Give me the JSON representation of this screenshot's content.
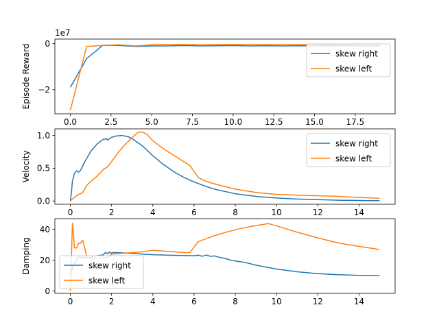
{
  "chart_data": [
    {
      "type": "line",
      "ylabel": "Episode Reward",
      "offset_label": "1e7",
      "xlim": [
        -0.95,
        19.95
      ],
      "ylim": [
        -3.05,
        0.2
      ],
      "xticks": [
        {
          "v": 0,
          "t": "0.0"
        },
        {
          "v": 2.5,
          "t": "2.5"
        },
        {
          "v": 5,
          "t": "5.0"
        },
        {
          "v": 7.5,
          "t": "7.5"
        },
        {
          "v": 10,
          "t": "10.0"
        },
        {
          "v": 12.5,
          "t": "12.5"
        },
        {
          "v": 15,
          "t": "15.0"
        },
        {
          "v": 17.5,
          "t": "17.5"
        }
      ],
      "yticks": [
        {
          "v": 0,
          "t": "0"
        },
        {
          "v": -2,
          "t": "−2"
        }
      ],
      "legend": {
        "position": "upper-right",
        "labels": [
          "skew right",
          "skew left"
        ]
      },
      "series": [
        {
          "name": "skew right",
          "color": "#1f77b4",
          "x": [
            0,
            1,
            2,
            3,
            4,
            5,
            6,
            7,
            8,
            9,
            10,
            11,
            12,
            13,
            14,
            15,
            16,
            17,
            18,
            19
          ],
          "y": [
            -1.9,
            -0.65,
            -0.07,
            -0.08,
            -0.12,
            -0.1,
            -0.1,
            -0.08,
            -0.1,
            -0.09,
            -0.08,
            -0.1,
            -0.09,
            -0.1,
            -0.09,
            -0.1,
            -0.09,
            -0.1,
            -0.1,
            -0.1
          ]
        },
        {
          "name": "skew left",
          "color": "#ff7f0e",
          "x": [
            0,
            1,
            2,
            3,
            4,
            5,
            6,
            7,
            8,
            9,
            10,
            11,
            12,
            13,
            14,
            15,
            16,
            17,
            18,
            19
          ],
          "y": [
            -2.9,
            -0.12,
            -0.08,
            -0.05,
            -0.1,
            -0.05,
            -0.03,
            -0.04,
            -0.05,
            -0.04,
            -0.04,
            -0.04,
            -0.03,
            -0.04,
            -0.04,
            -0.03,
            -0.04,
            -0.04,
            -0.03,
            -0.03
          ]
        }
      ]
    },
    {
      "type": "line",
      "ylabel": "Velocity",
      "xlim": [
        -0.75,
        15.75
      ],
      "ylim": [
        -0.05,
        1.1
      ],
      "xticks": [
        {
          "v": 0,
          "t": "0"
        },
        {
          "v": 2,
          "t": "2"
        },
        {
          "v": 4,
          "t": "4"
        },
        {
          "v": 6,
          "t": "6"
        },
        {
          "v": 8,
          "t": "8"
        },
        {
          "v": 10,
          "t": "10"
        },
        {
          "v": 12,
          "t": "12"
        },
        {
          "v": 14,
          "t": "14"
        }
      ],
      "yticks": [
        {
          "v": 0,
          "t": "0.0"
        },
        {
          "v": 0.5,
          "t": "0.5"
        },
        {
          "v": 1,
          "t": "1.0"
        }
      ],
      "legend": {
        "position": "upper-right",
        "labels": [
          "skew right",
          "skew left"
        ]
      },
      "series": [
        {
          "name": "skew right",
          "color": "#1f77b4",
          "x": [
            0,
            0.05,
            0.1,
            0.2,
            0.3,
            0.4,
            0.5,
            0.7,
            1.0,
            1.3,
            1.6,
            1.75,
            1.8,
            1.9,
            2.0,
            2.2,
            2.5,
            2.8,
            3.0,
            3.5,
            4.0,
            4.5,
            5.0,
            5.5,
            6.0,
            6.5,
            7.0,
            8.0,
            9.0,
            10.0,
            11.0,
            12.0,
            13.0,
            14.0,
            15.0
          ],
          "y": [
            0,
            0.12,
            0.3,
            0.42,
            0.46,
            0.44,
            0.47,
            0.6,
            0.76,
            0.87,
            0.94,
            0.95,
            0.93,
            0.95,
            0.97,
            0.99,
            1.0,
            0.98,
            0.95,
            0.84,
            0.69,
            0.56,
            0.45,
            0.36,
            0.29,
            0.23,
            0.18,
            0.11,
            0.07,
            0.045,
            0.03,
            0.02,
            0.012,
            0.007,
            0.004
          ]
        },
        {
          "name": "skew left",
          "color": "#ff7f0e",
          "x": [
            0,
            0.1,
            0.3,
            0.6,
            0.8,
            1.0,
            1.3,
            1.6,
            1.8,
            2.0,
            2.3,
            2.6,
            3.0,
            3.3,
            3.5,
            3.7,
            4.0,
            4.5,
            5.0,
            5.5,
            5.8,
            6.0,
            6.2,
            6.5,
            7.0,
            8.0,
            9.0,
            10.0,
            11.0,
            12.0,
            13.0,
            14.0,
            15.0
          ],
          "y": [
            0,
            0.03,
            0.08,
            0.13,
            0.24,
            0.3,
            0.38,
            0.48,
            0.52,
            0.6,
            0.73,
            0.84,
            0.97,
            1.05,
            1.05,
            1.02,
            0.92,
            0.8,
            0.7,
            0.6,
            0.54,
            0.45,
            0.36,
            0.31,
            0.26,
            0.18,
            0.13,
            0.1,
            0.09,
            0.08,
            0.07,
            0.055,
            0.04
          ]
        }
      ]
    },
    {
      "type": "line",
      "ylabel": "Damping",
      "xlim": [
        -0.75,
        15.75
      ],
      "ylim": [
        -1.5,
        47
      ],
      "xticks": [
        {
          "v": 0,
          "t": "0"
        },
        {
          "v": 2,
          "t": "2"
        },
        {
          "v": 4,
          "t": "4"
        },
        {
          "v": 6,
          "t": "6"
        },
        {
          "v": 8,
          "t": "8"
        },
        {
          "v": 10,
          "t": "10"
        },
        {
          "v": 12,
          "t": "12"
        },
        {
          "v": 14,
          "t": "14"
        }
      ],
      "yticks": [
        {
          "v": 0,
          "t": "0"
        },
        {
          "v": 20,
          "t": "20"
        },
        {
          "v": 40,
          "t": "40"
        }
      ],
      "legend": {
        "position": "lower-left",
        "labels": [
          "skew right",
          "skew left"
        ]
      },
      "series": [
        {
          "name": "skew right",
          "color": "#1f77b4",
          "x": [
            0,
            0.05,
            0.1,
            0.2,
            0.3,
            0.4,
            0.5,
            0.7,
            1.0,
            1.3,
            1.6,
            1.7,
            1.8,
            1.9,
            2.0,
            2.1,
            2.2,
            2.5,
            3.0,
            3.5,
            4.0,
            5.0,
            6.0,
            6.2,
            6.4,
            6.6,
            6.8,
            7.0,
            7.2,
            7.5,
            7.8,
            8.0,
            8.5,
            9.0,
            10.0,
            11.0,
            12.0,
            13.0,
            14.0,
            15.0
          ],
          "y": [
            10,
            12,
            15,
            18,
            20,
            22,
            22,
            21.5,
            22,
            23,
            23.5,
            25,
            24.3,
            25.3,
            24.5,
            25.1,
            25,
            24.8,
            24.5,
            24,
            23.6,
            23.2,
            22.9,
            23.3,
            22.6,
            23.4,
            22.5,
            22.8,
            22,
            21.2,
            20,
            19.5,
            18.5,
            16.8,
            14.3,
            12.5,
            11.3,
            10.6,
            10.2,
            10
          ]
        },
        {
          "name": "skew left",
          "color": "#ff7f0e",
          "x": [
            0,
            0.05,
            0.1,
            0.15,
            0.2,
            0.3,
            0.4,
            0.5,
            0.6,
            0.7,
            0.8,
            1.0,
            1.5,
            1.8,
            2.0,
            2.5,
            3.0,
            3.5,
            4.0,
            5.0,
            5.5,
            5.8,
            6.0,
            6.2,
            6.5,
            7.0,
            7.5,
            8.0,
            8.5,
            9.0,
            9.6,
            10.0,
            11.0,
            12.0,
            13.0,
            14.0,
            15.0
          ],
          "y": [
            0,
            20,
            44,
            38,
            28,
            28,
            31,
            31,
            33,
            28,
            22,
            21,
            21.5,
            22,
            24,
            24.5,
            25,
            25.5,
            26.5,
            25.5,
            25,
            25,
            28.5,
            32,
            33.5,
            36,
            38,
            39.8,
            41.3,
            42.5,
            43.8,
            42.3,
            38.2,
            34.5,
            31.2,
            29,
            27
          ]
        }
      ]
    }
  ]
}
